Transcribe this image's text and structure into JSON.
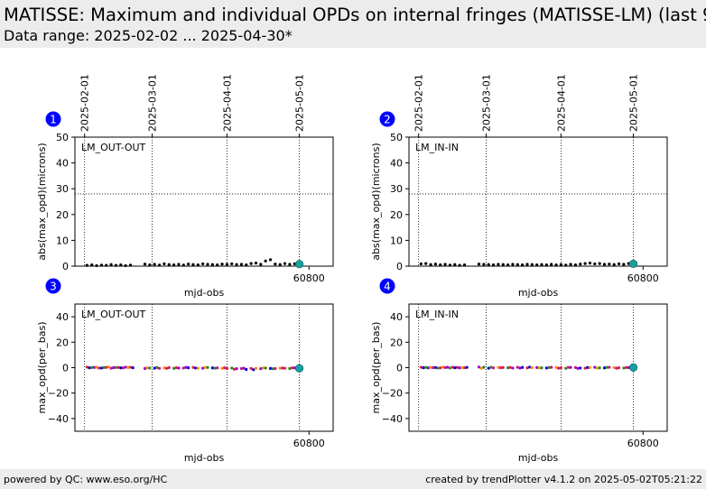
{
  "header": {
    "title": "MATISSE: Maximum and individual OPDs on internal fringes (MATISSE-LM) (last 9",
    "subtitle": "Data range: 2025-02-02 ... 2025-04-30*"
  },
  "footer": {
    "left": "powered by QC: www.eso.org/HC",
    "right": "created by trendPlotter v4.1.2 on 2025-05-02T05:21:22"
  },
  "colors": {
    "marker": "#0000ff",
    "points": "#000000",
    "last_point": "#18a0a0",
    "series_palette": [
      "#e6194b",
      "#9400d3",
      "#0000cd",
      "#ff8c00",
      "#228b22",
      "#c71585"
    ]
  },
  "date_ticks": [
    {
      "label": "2025-02-01",
      "mjd": 60707
    },
    {
      "label": "2025-03-01",
      "mjd": 60735
    },
    {
      "label": "2025-04-01",
      "mjd": 60766
    },
    {
      "label": "2025-05-01",
      "mjd": 60796
    }
  ],
  "chart_data": [
    {
      "panel": "1",
      "type": "scatter",
      "annotation": "LM_OUT-OUT",
      "xlabel": "mjd-obs",
      "ylabel": "abs(max_opd)(microns)",
      "xlim": [
        60703,
        60810
      ],
      "ylim": [
        0,
        50
      ],
      "yticks": [
        0,
        10,
        20,
        30,
        40,
        50
      ],
      "xticks": [
        {
          "value": 60800,
          "label": "60800"
        }
      ],
      "threshold": 28,
      "x": [
        60708,
        60710,
        60712,
        60714,
        60716,
        60718,
        60720,
        60722,
        60724,
        60726,
        60732,
        60734,
        60736,
        60738,
        60740,
        60742,
        60744,
        60746,
        60748,
        60750,
        60752,
        60754,
        60756,
        60758,
        60760,
        60762,
        60764,
        60766,
        60768,
        60770,
        60772,
        60774,
        60776,
        60778,
        60780,
        60782,
        60784,
        60786,
        60788,
        60790,
        60792,
        60794
      ],
      "y": [
        0.3,
        0.5,
        0.2,
        0.4,
        0.3,
        0.6,
        0.3,
        0.5,
        0.2,
        0.4,
        0.8,
        0.5,
        0.7,
        0.4,
        0.9,
        0.6,
        0.5,
        0.7,
        0.4,
        0.8,
        0.6,
        0.5,
        0.9,
        0.7,
        0.6,
        0.5,
        0.8,
        0.7,
        0.9,
        0.6,
        0.7,
        0.5,
        1.0,
        1.2,
        0.7,
        2.0,
        2.5,
        0.8,
        0.6,
        1.0,
        0.7,
        0.9
      ],
      "last": {
        "x": 60796,
        "y": 0.8
      }
    },
    {
      "panel": "2",
      "type": "scatter",
      "annotation": "LM_IN-IN",
      "xlabel": "mjd-obs",
      "ylabel": "abs(max_opd)(microns)",
      "xlim": [
        60703,
        60810
      ],
      "ylim": [
        0,
        50
      ],
      "yticks": [
        0,
        10,
        20,
        30,
        40,
        50
      ],
      "xticks": [
        {
          "value": 60800,
          "label": "60800"
        }
      ],
      "threshold": 28,
      "x": [
        60708,
        60710,
        60712,
        60714,
        60716,
        60718,
        60720,
        60722,
        60724,
        60726,
        60732,
        60734,
        60736,
        60738,
        60740,
        60742,
        60744,
        60746,
        60748,
        60750,
        60752,
        60754,
        60756,
        60758,
        60760,
        60762,
        60764,
        60766,
        60768,
        60770,
        60772,
        60774,
        60776,
        60778,
        60780,
        60782,
        60784,
        60786,
        60788,
        60790,
        60792,
        60794
      ],
      "y": [
        0.9,
        1.0,
        0.6,
        0.8,
        0.5,
        0.7,
        0.4,
        0.6,
        0.3,
        0.5,
        0.8,
        0.7,
        0.6,
        0.5,
        0.7,
        0.6,
        0.5,
        0.7,
        0.6,
        0.5,
        0.7,
        0.6,
        0.5,
        0.6,
        0.5,
        0.7,
        0.5,
        0.6,
        0.4,
        0.7,
        0.5,
        0.8,
        1.0,
        1.2,
        0.9,
        1.0,
        0.7,
        0.8,
        0.6,
        0.9,
        0.7,
        1.0
      ],
      "last": {
        "x": 60796,
        "y": 0.9
      }
    },
    {
      "panel": "3",
      "type": "scatter",
      "annotation": "LM_OUT-OUT",
      "xlabel": "mjd-obs",
      "ylabel": "max_opd(per_bas)",
      "xlim": [
        60703,
        60810
      ],
      "ylim": [
        -50,
        50
      ],
      "yticks": [
        -40,
        -20,
        0,
        20,
        40
      ],
      "xticks": [
        {
          "value": 60800,
          "label": "60800"
        }
      ],
      "series": [
        {
          "x": [
            60708,
            60711,
            60714,
            60717,
            60720,
            60723,
            60726,
            60732,
            60736,
            60740,
            60744,
            60748,
            60752,
            60756,
            60760,
            60764,
            60768,
            60772,
            60776,
            60780,
            60784,
            60788,
            60792,
            60795
          ],
          "y": [
            0.4,
            0.2,
            -0.3,
            0.5,
            0.1,
            -0.2,
            0.3,
            -0.6,
            -0.4,
            -0.2,
            -0.5,
            -0.3,
            0.2,
            -0.4,
            -0.2,
            -0.5,
            -0.3,
            -0.7,
            -0.6,
            -0.8,
            -0.6,
            -0.4,
            -0.7,
            -0.5
          ]
        },
        {
          "x": [
            60709,
            60712,
            60715,
            60718,
            60721,
            60724,
            60727,
            60733,
            60737,
            60741,
            60745,
            60749,
            60753,
            60757,
            60761,
            60765,
            60769,
            60773,
            60777,
            60781,
            60785,
            60789,
            60793,
            60795
          ],
          "y": [
            -0.2,
            0.3,
            0.1,
            -0.4,
            0.2,
            0.4,
            -0.1,
            -0.2,
            0.1,
            -0.5,
            -0.1,
            0.2,
            -0.3,
            0.1,
            -0.4,
            -0.2,
            -1.2,
            -0.4,
            -1.6,
            -0.2,
            -0.9,
            -0.3,
            -0.2,
            -0.6
          ]
        },
        {
          "x": [
            60710,
            60713,
            60716,
            60719,
            60722,
            60725,
            60734,
            60738,
            60742,
            60746,
            60750,
            60754,
            60758,
            60762,
            60766,
            60770,
            60774,
            60778,
            60782,
            60786,
            60790,
            60794
          ],
          "y": [
            0.1,
            -0.3,
            0.2,
            0.0,
            -0.2,
            0.1,
            -0.3,
            -0.5,
            0.0,
            -0.3,
            -0.1,
            -0.4,
            0.2,
            -0.2,
            -0.6,
            -0.8,
            -1.4,
            -0.5,
            -0.3,
            -0.7,
            -0.4,
            -0.2
          ]
        }
      ],
      "last": {
        "x": 60796,
        "y": -0.5
      }
    },
    {
      "panel": "4",
      "type": "scatter",
      "annotation": "LM_IN-IN",
      "xlabel": "mjd-obs",
      "ylabel": "max_opd(per_bas)",
      "xlim": [
        60703,
        60810
      ],
      "ylim": [
        -50,
        50
      ],
      "yticks": [
        -40,
        -20,
        0,
        20,
        40
      ],
      "xticks": [
        {
          "value": 60800,
          "label": "60800"
        }
      ],
      "series": [
        {
          "x": [
            60708,
            60711,
            60714,
            60717,
            60720,
            60723,
            60726,
            60732,
            60736,
            60740,
            60744,
            60748,
            60752,
            60756,
            60760,
            60764,
            60768,
            60772,
            60776,
            60780,
            60784,
            60788,
            60792,
            60795
          ],
          "y": [
            0.3,
            -0.2,
            0.1,
            0.4,
            -0.3,
            0.2,
            -0.1,
            0.5,
            -0.4,
            0.2,
            -0.1,
            0.3,
            -0.2,
            0.1,
            -0.3,
            0.2,
            -0.5,
            0.1,
            -0.4,
            0.3,
            -0.2,
            0.1,
            -0.3,
            0.2
          ]
        },
        {
          "x": [
            60709,
            60712,
            60715,
            60718,
            60721,
            60724,
            60727,
            60733,
            60737,
            60741,
            60745,
            60749,
            60753,
            60757,
            60761,
            60765,
            60769,
            60773,
            60777,
            60781,
            60785,
            60789,
            60793,
            60795
          ],
          "y": [
            -0.1,
            0.2,
            -0.3,
            0.1,
            0.3,
            -0.2,
            0.2,
            -0.4,
            0.3,
            -0.1,
            0.2,
            -0.3,
            0.4,
            -0.2,
            0.1,
            -0.4,
            0.2,
            -0.6,
            0.1,
            -0.3,
            0.2,
            -0.4,
            0.1,
            -0.2
          ]
        },
        {
          "x": [
            60710,
            60713,
            60716,
            60719,
            60722,
            60725,
            60734,
            60738,
            60742,
            60746,
            60750,
            60754,
            60758,
            60762,
            60766,
            60770,
            60774,
            60778,
            60782,
            60786,
            60790,
            60794
          ],
          "y": [
            0.2,
            0.0,
            -0.2,
            0.3,
            -0.1,
            0.1,
            0.3,
            -0.2,
            0.1,
            -0.3,
            0.2,
            0.0,
            -0.2,
            0.3,
            -0.1,
            0.2,
            -0.3,
            0.1,
            -0.2,
            0.3,
            -0.1,
            0.1
          ]
        }
      ],
      "last": {
        "x": 60796,
        "y": 0.2
      }
    }
  ]
}
